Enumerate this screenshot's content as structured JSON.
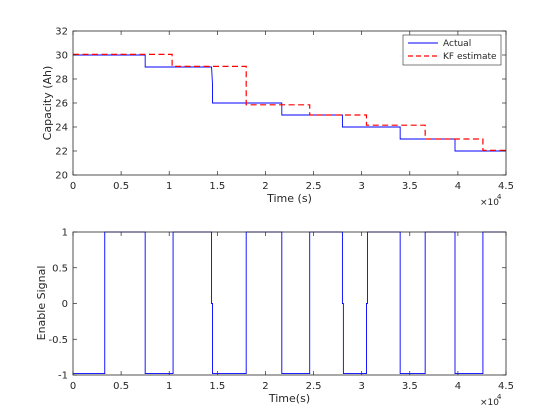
{
  "chart_data": [
    {
      "type": "line",
      "xlabel": "Time (s)",
      "ylabel": "Capacity (Ah)",
      "x_tick_labels": [
        "0",
        "0.5",
        "1",
        "1.5",
        "2",
        "2.5",
        "3",
        "3.5",
        "4",
        "4.5"
      ],
      "x_exponent_base": "×10",
      "x_exponent_power": "4",
      "xlim": [
        0,
        45000
      ],
      "ylim": [
        20,
        32
      ],
      "y_ticks": [
        20,
        22,
        24,
        26,
        28,
        30,
        32
      ],
      "grid": false,
      "legend_position": "top-right",
      "series": [
        {
          "name": "Actual",
          "color": "#0000ff",
          "style": "solid",
          "x": [
            0,
            7500,
            7500,
            14400,
            14500,
            14500,
            21700,
            21700,
            28000,
            28000,
            34000,
            34000,
            39700,
            39700,
            45000
          ],
          "y": [
            30,
            30,
            29,
            29,
            27.5,
            26,
            26,
            25,
            25,
            24,
            24,
            23,
            23,
            22,
            22
          ]
        },
        {
          "name": "KF estimate",
          "color": "#ff0000",
          "style": "dashed",
          "x": [
            0,
            10300,
            10300,
            18000,
            18000,
            24600,
            24600,
            30500,
            30500,
            36600,
            36600,
            42600,
            42600,
            45000
          ],
          "y": [
            30.05,
            30.05,
            29.05,
            29.05,
            25.85,
            25.85,
            25.0,
            25.0,
            24.15,
            24.15,
            23.0,
            23.0,
            22.05,
            22.05
          ]
        }
      ]
    },
    {
      "type": "line",
      "xlabel": "Time(s)",
      "ylabel": "Enable Signal",
      "x_tick_labels": [
        "0",
        "0.5",
        "1",
        "1.5",
        "2",
        "2.5",
        "3",
        "3.5",
        "4",
        "4.5"
      ],
      "x_exponent_base": "×10",
      "x_exponent_power": "4",
      "xlim": [
        0,
        45000
      ],
      "ylim": [
        -1,
        1
      ],
      "y_ticks": [
        -1,
        -0.5,
        0,
        0.5,
        1
      ],
      "grid": false,
      "series": [
        {
          "color": "#0000ff",
          "style": "solid",
          "x": [
            0,
            3300,
            3300,
            7500,
            7500,
            10400,
            10400,
            14400,
            14400,
            14500,
            14500,
            18000,
            18000,
            21700,
            21700,
            24600,
            24600,
            28000,
            28000,
            28100,
            28100,
            30500,
            30500,
            30600,
            30600,
            34000,
            34000,
            36600,
            36600,
            39700,
            39700,
            42600,
            42600,
            45000
          ],
          "y": [
            -0.98,
            -0.98,
            1,
            1,
            -0.98,
            -0.98,
            1,
            1,
            0,
            0,
            -0.98,
            -0.98,
            1,
            1,
            -0.98,
            -0.98,
            1,
            1,
            0,
            0,
            -0.98,
            -0.98,
            0,
            0,
            1,
            1,
            -0.98,
            -0.98,
            1,
            1,
            -0.98,
            -0.98,
            1,
            1
          ]
        }
      ]
    }
  ]
}
